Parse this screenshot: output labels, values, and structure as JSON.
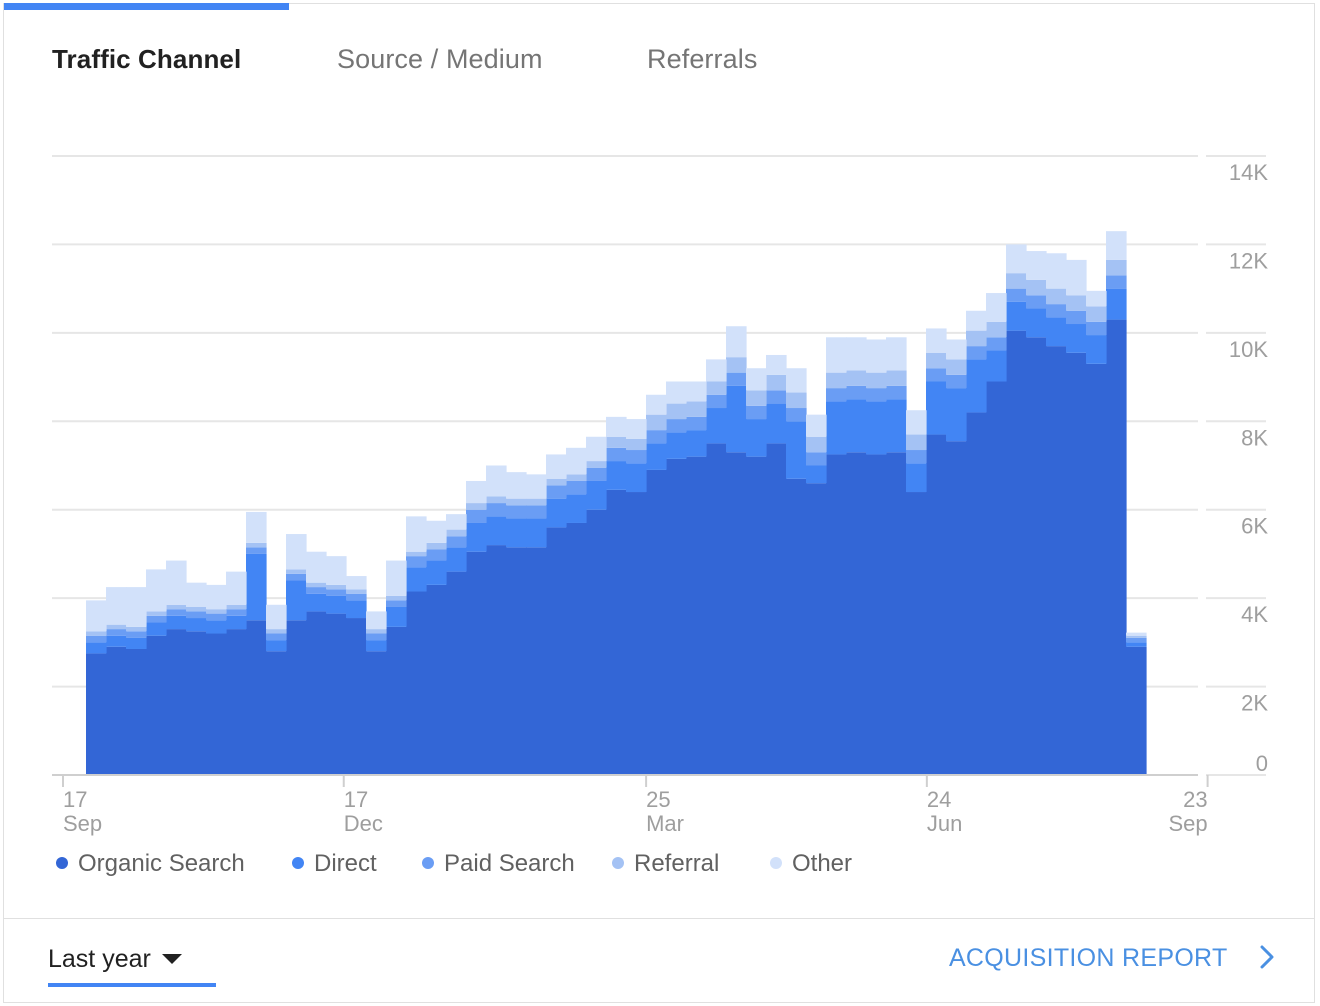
{
  "tabs": {
    "traffic_channel": "Traffic Channel",
    "source_medium": "Source / Medium",
    "referrals": "Referrals"
  },
  "footer": {
    "range_label": "Last year",
    "report_label": "ACQUISITION REPORT"
  },
  "colors": {
    "accent": "#4285f4",
    "link": "#4a90e2"
  },
  "icons": {
    "range_caret": "caret-down-icon",
    "report_chevron": "chevron-right-icon"
  },
  "chart_data": {
    "type": "area",
    "title": "",
    "xlabel": "",
    "ylabel": "",
    "ylim": [
      0,
      14000
    ],
    "y_ticks": [
      "0",
      "2K",
      "4K",
      "6K",
      "8K",
      "10K",
      "12K",
      "14K"
    ],
    "y_tick_values": [
      0,
      2000,
      4000,
      6000,
      8000,
      10000,
      12000,
      14000
    ],
    "x_ticks": [
      {
        "day": "17",
        "month": "Sep",
        "week": 0
      },
      {
        "day": "17",
        "month": "Dec",
        "week": 13
      },
      {
        "day": "25",
        "month": "Mar",
        "week": 27
      },
      {
        "day": "24",
        "month": "Jun",
        "week": 40
      },
      {
        "day": "23",
        "month": "Sep",
        "week": 53
      }
    ],
    "grid": true,
    "stacked": true,
    "step": true,
    "legend_position": "bottom",
    "x": [
      "Sep 17",
      "Sep 24",
      "Oct 1",
      "Oct 8",
      "Oct 15",
      "Oct 22",
      "Oct 29",
      "Nov 5",
      "Nov 12",
      "Nov 19",
      "Nov 26",
      "Dec 3",
      "Dec 10",
      "Dec 17",
      "Dec 24",
      "Dec 31",
      "Jan 7",
      "Jan 14",
      "Jan 21",
      "Jan 28",
      "Feb 4",
      "Feb 11",
      "Feb 18",
      "Feb 25",
      "Mar 4",
      "Mar 11",
      "Mar 18",
      "Mar 25",
      "Apr 1",
      "Apr 8",
      "Apr 15",
      "Apr 22",
      "Apr 29",
      "May 6",
      "May 13",
      "May 20",
      "May 27",
      "Jun 3",
      "Jun 10",
      "Jun 17",
      "Jun 24",
      "Jul 1",
      "Jul 8",
      "Jul 15",
      "Jul 22",
      "Jul 29",
      "Aug 5",
      "Aug 12",
      "Aug 19",
      "Aug 26",
      "Sep 2",
      "Sep 9",
      "Sep 16"
    ],
    "series": [
      {
        "name": "Organic Search",
        "color": "#3366d6",
        "values": [
          2750,
          2900,
          2850,
          3150,
          3300,
          3250,
          3200,
          3300,
          3500,
          2800,
          3500,
          3700,
          3650,
          3550,
          2800,
          3350,
          4150,
          4300,
          4600,
          5050,
          5200,
          5150,
          5150,
          5600,
          5700,
          6000,
          6450,
          6400,
          6900,
          7150,
          7200,
          7500,
          7300,
          7200,
          7500,
          6700,
          6600,
          7250,
          7300,
          7250,
          7300,
          6400,
          7700,
          7550,
          8200,
          8900,
          10050,
          9900,
          9700,
          9550,
          9300,
          10300,
          2900
        ]
      },
      {
        "name": "Direct",
        "color": "#4285f4",
        "values": [
          250,
          250,
          250,
          300,
          300,
          300,
          300,
          300,
          1500,
          250,
          900,
          400,
          400,
          400,
          250,
          450,
          550,
          550,
          550,
          650,
          650,
          650,
          650,
          650,
          650,
          650,
          650,
          650,
          600,
          600,
          600,
          800,
          1500,
          850,
          900,
          1300,
          400,
          1200,
          1200,
          1200,
          1200,
          650,
          1200,
          1200,
          1200,
          700,
          650,
          650,
          650,
          650,
          650,
          700,
          100
        ]
      },
      {
        "name": "Paid Search",
        "color": "#6a9df4",
        "values": [
          150,
          150,
          150,
          150,
          150,
          150,
          150,
          150,
          150,
          150,
          150,
          150,
          150,
          150,
          150,
          150,
          250,
          250,
          250,
          300,
          300,
          300,
          300,
          300,
          300,
          300,
          300,
          300,
          300,
          300,
          300,
          300,
          300,
          300,
          300,
          300,
          300,
          300,
          300,
          300,
          300,
          300,
          300,
          300,
          300,
          300,
          300,
          300,
          300,
          300,
          300,
          300,
          100
        ]
      },
      {
        "name": "Referral",
        "color": "#a4c2f4",
        "values": [
          100,
          100,
          100,
          100,
          100,
          100,
          100,
          100,
          100,
          100,
          100,
          100,
          100,
          100,
          100,
          100,
          100,
          150,
          150,
          150,
          150,
          150,
          150,
          150,
          150,
          150,
          250,
          250,
          350,
          350,
          350,
          300,
          350,
          350,
          350,
          350,
          350,
          350,
          350,
          350,
          350,
          350,
          350,
          350,
          350,
          350,
          350,
          350,
          350,
          350,
          350,
          350,
          50
        ]
      },
      {
        "name": "Other",
        "color": "#d2e1fa",
        "values": [
          700,
          850,
          900,
          950,
          1000,
          550,
          550,
          750,
          700,
          550,
          800,
          700,
          650,
          300,
          400,
          800,
          800,
          500,
          350,
          500,
          700,
          600,
          550,
          550,
          600,
          550,
          450,
          450,
          450,
          500,
          450,
          500,
          700,
          500,
          450,
          550,
          500,
          800,
          750,
          750,
          750,
          550,
          550,
          450,
          450,
          650,
          650,
          650,
          800,
          800,
          350,
          650,
          70
        ]
      }
    ]
  }
}
